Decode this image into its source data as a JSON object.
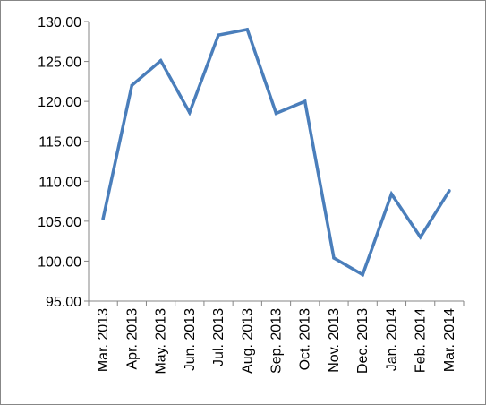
{
  "chart_data": {
    "type": "line",
    "categories": [
      "Mar. 2013",
      "Apr. 2013",
      "May. 2013",
      "Jun. 2013",
      "Jul. 2013",
      "Aug. 2013",
      "Sep. 2013",
      "Oct. 2013",
      "Nov. 2013",
      "Dec. 2013",
      "Jan. 2014",
      "Feb. 2014",
      "Mar. 2014"
    ],
    "series": [
      {
        "values": [
          105.3,
          122.0,
          125.1,
          118.6,
          128.3,
          129.0,
          118.5,
          120.0,
          100.4,
          98.3,
          108.4,
          103.0,
          108.8
        ],
        "color": "#4a7ebb"
      }
    ],
    "yticks": [
      "95.00",
      "100.00",
      "105.00",
      "110.00",
      "115.00",
      "120.00",
      "125.00",
      "130.00"
    ],
    "ylim": [
      95,
      130
    ],
    "grid": false,
    "legend": "none"
  }
}
